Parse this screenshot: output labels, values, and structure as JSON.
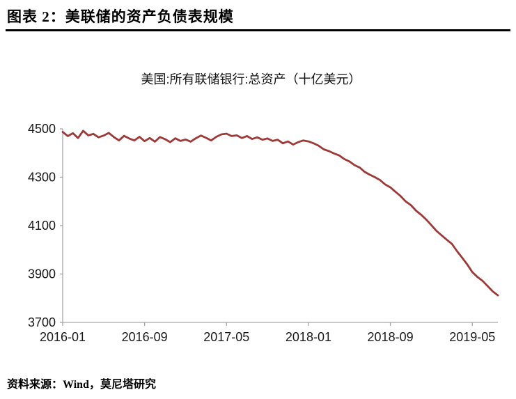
{
  "page": {
    "figure_title": "图表 2：美联储的资产负债表规模",
    "source_note": "资料来源：Wind，莫尼塔研究"
  },
  "chart_data": {
    "type": "line",
    "title": "美国:所有联储银行:总资产（十亿美元）",
    "ylabel": "",
    "xlabel": "",
    "ylim": [
      3700,
      4500
    ],
    "y_ticks": [
      3700,
      3900,
      4100,
      4300,
      4500
    ],
    "x_tick_labels": [
      "2016-01",
      "2016-09",
      "2017-05",
      "2018-01",
      "2018-09",
      "2019-05"
    ],
    "x_tick_indices": [
      0,
      16,
      32,
      48,
      64,
      80
    ],
    "x_range_note": "semi-monthly points 2016-01 through 2019-07",
    "line_color": "#9d3a38",
    "axis_color": "#a6a6a6",
    "tick_label_color": "#1a1a1a",
    "grid": false,
    "legend": "none",
    "values": [
      4487,
      4470,
      4482,
      4462,
      4492,
      4473,
      4479,
      4465,
      4472,
      4483,
      4466,
      4452,
      4471,
      4460,
      4452,
      4467,
      4449,
      4462,
      4447,
      4466,
      4457,
      4445,
      4461,
      4450,
      4456,
      4447,
      4461,
      4472,
      4463,
      4452,
      4467,
      4477,
      4480,
      4470,
      4473,
      4462,
      4470,
      4458,
      4465,
      4455,
      4460,
      4450,
      4455,
      4440,
      4448,
      4435,
      4445,
      4452,
      4448,
      4440,
      4430,
      4415,
      4408,
      4398,
      4390,
      4375,
      4365,
      4350,
      4340,
      4322,
      4310,
      4300,
      4288,
      4270,
      4258,
      4240,
      4222,
      4200,
      4185,
      4162,
      4145,
      4125,
      4102,
      4078,
      4060,
      4042,
      4025,
      3995,
      3968,
      3940,
      3908,
      3888,
      3872,
      3850,
      3828,
      3812
    ]
  }
}
